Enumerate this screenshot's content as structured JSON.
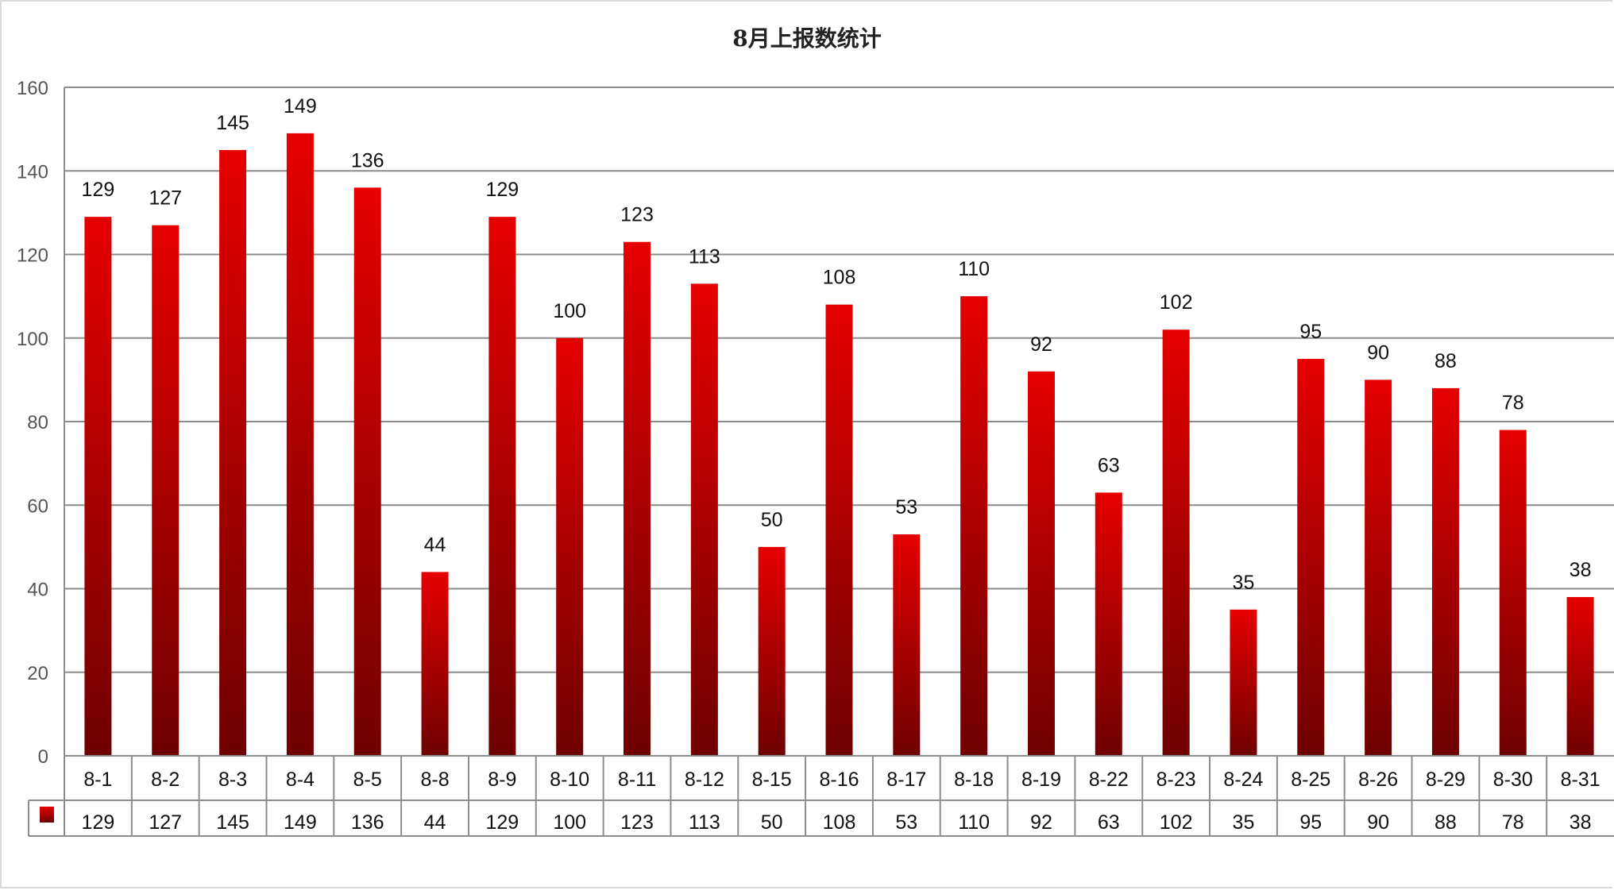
{
  "chart_data": {
    "type": "bar",
    "title": "8月上报数统计",
    "xlabel": "",
    "ylabel": "",
    "ylim": [
      0,
      160
    ],
    "yticks": [
      0,
      20,
      40,
      60,
      80,
      100,
      120,
      140,
      160
    ],
    "grid": true,
    "legend": "data-table-left",
    "categories": [
      "8-1",
      "8-2",
      "8-3",
      "8-4",
      "8-5",
      "8-8",
      "8-9",
      "8-10",
      "8-11",
      "8-12",
      "8-15",
      "8-16",
      "8-17",
      "8-18",
      "8-19",
      "8-22",
      "8-23",
      "8-24",
      "8-25",
      "8-26",
      "8-29",
      "8-30",
      "8-31"
    ],
    "values": [
      129,
      127,
      145,
      149,
      136,
      44,
      129,
      100,
      123,
      113,
      50,
      108,
      53,
      110,
      92,
      63,
      102,
      35,
      95,
      90,
      88,
      78,
      38
    ],
    "colors": {
      "bar_top": "#e60000",
      "bar_bottom": "#6e0000",
      "grid": "#8c8c8c"
    }
  }
}
